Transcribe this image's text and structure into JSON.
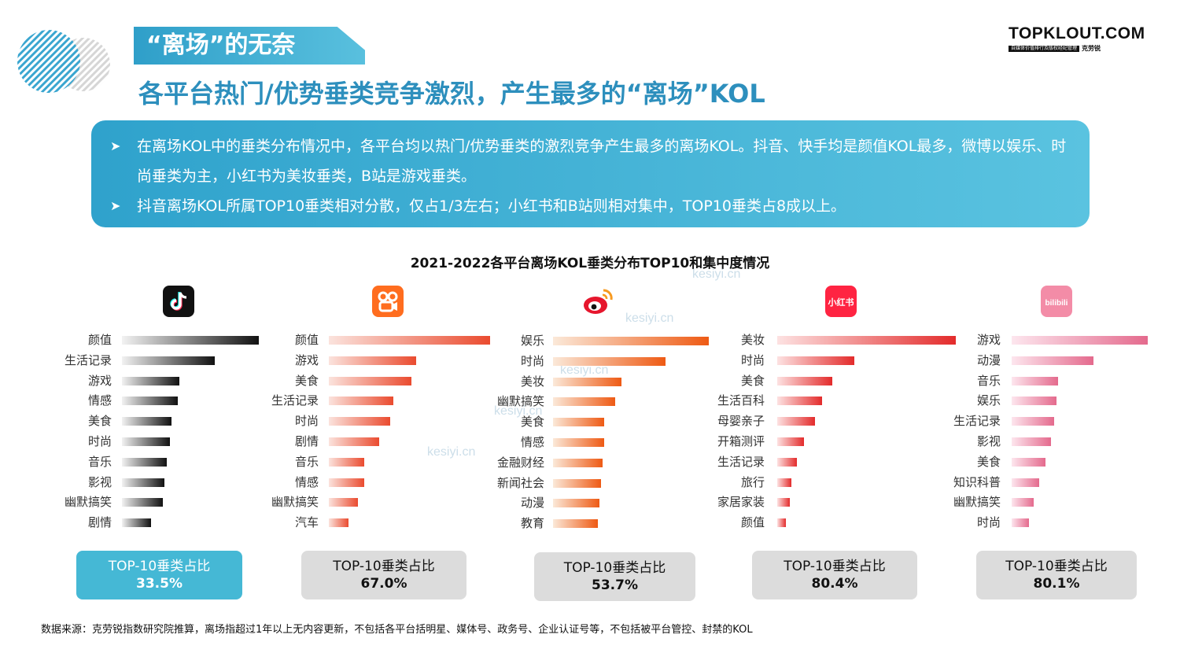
{
  "header": {
    "section_title": "“离场”的无奈",
    "headline": "各平台热门/优势垂类竞争激烈，产生最多的“离场”KOL",
    "brand_name": "TOPKLOUT.COM",
    "brand_tagline": "自媒体价值排行及版权经纪管理",
    "brand_cn": "克劳锐"
  },
  "summary": {
    "bullet_icon": "arrow-right-icon",
    "bullets": [
      "在离场KOL中的垂类分布情况中，各平台均以热门/优势垂类的激烈竞争产生最多的离场KOL。抖音、快手均是颜值KOL最多，微博以娱乐、时尚垂类为主，小红书为美妆垂类，B站是游戏垂类。",
      "抖音离场KOL所属TOP10垂类相对分散，仅占1/3左右；小红书和B站则相对集中，TOP10垂类占8成以上。"
    ]
  },
  "watermark": "kesiyi.cn",
  "chart_data": {
    "type": "bar",
    "title": "2021-2022各平台离场KOL垂类分布TOP10和集中度情况",
    "orientation": "horizontal",
    "value_axis_shown": false,
    "note": "values are relative bar lengths read from the figure (no axis printed); first bar = 100",
    "platforms": [
      {
        "logo_icon": "douyin-logo-icon",
        "logo_color": "#111111",
        "bar_color_start": "#f2f2f2",
        "bar_color_end": "#111111",
        "categories": [
          "颜值",
          "生活记录",
          "游戏",
          "情感",
          "美食",
          "时尚",
          "音乐",
          "影视",
          "幽默搞笑",
          "剧情"
        ],
        "values": [
          100,
          68,
          42,
          41,
          36,
          35,
          33,
          31,
          30,
          21
        ],
        "top10_label": "TOP-10垂类占比",
        "top10_share": "33.5%",
        "highlight": true
      },
      {
        "logo_icon": "kuaishou-logo-icon",
        "logo_color": "#ff6d1f",
        "bar_color_start": "#fbe3dd",
        "bar_color_end": "#ea4b2f",
        "categories": [
          "颜值",
          "游戏",
          "美食",
          "生活记录",
          "时尚",
          "剧情",
          "音乐",
          "情感",
          "幽默搞笑",
          "汽车"
        ],
        "values": [
          100,
          54,
          51,
          40,
          38,
          31,
          22,
          22,
          18,
          12
        ],
        "top10_label": "TOP-10垂类占比",
        "top10_share": "67.0%",
        "highlight": false
      },
      {
        "logo_icon": "weibo-logo-icon",
        "logo_color": "#e6162d",
        "bar_color_start": "#fbe9d9",
        "bar_color_end": "#ee5a14",
        "categories": [
          "娱乐",
          "时尚",
          "美妆",
          "幽默搞笑",
          "美食",
          "情感",
          "金融财经",
          "新闻社会",
          "动漫",
          "教育"
        ],
        "values": [
          100,
          72,
          44,
          40,
          33,
          33,
          32,
          31,
          30,
          29
        ],
        "top10_label": "TOP-10垂类占比",
        "top10_share": "53.7%",
        "highlight": false
      },
      {
        "logo_icon": "xiaohongshu-logo-icon",
        "logo_color": "#ff2442",
        "logo_text": "小红书",
        "bar_color_start": "#fde2e2",
        "bar_color_end": "#e32b2b",
        "categories": [
          "美妆",
          "时尚",
          "美食",
          "生活百科",
          "母婴亲子",
          "开箱测评",
          "生活记录",
          "旅行",
          "家居家装",
          "颜值"
        ],
        "values": [
          100,
          43,
          31,
          25,
          21,
          15,
          11,
          8,
          7,
          5
        ],
        "top10_label": "TOP-10垂类占比",
        "top10_share": "80.4%",
        "highlight": false
      },
      {
        "logo_icon": "bilibili-logo-icon",
        "logo_color": "#f38ca7",
        "logo_text": "bilibili",
        "bar_color_start": "#fde6ee",
        "bar_color_end": "#e46a8d",
        "categories": [
          "游戏",
          "动漫",
          "音乐",
          "娱乐",
          "生活记录",
          "影视",
          "美食",
          "知识科普",
          "幽默搞笑",
          "时尚"
        ],
        "values": [
          100,
          60,
          34,
          33,
          31,
          29,
          25,
          20,
          16,
          13
        ],
        "top10_label": "TOP-10垂类占比",
        "top10_share": "80.1%",
        "highlight": false
      }
    ]
  },
  "footer": {
    "source": "数据来源：克劳锐指数研究院推算，离场指超过1年以上无内容更新，不包括各平台括明星、媒体号、政务号、企业认证号等，不包括被平台管控、封禁的KOL"
  }
}
